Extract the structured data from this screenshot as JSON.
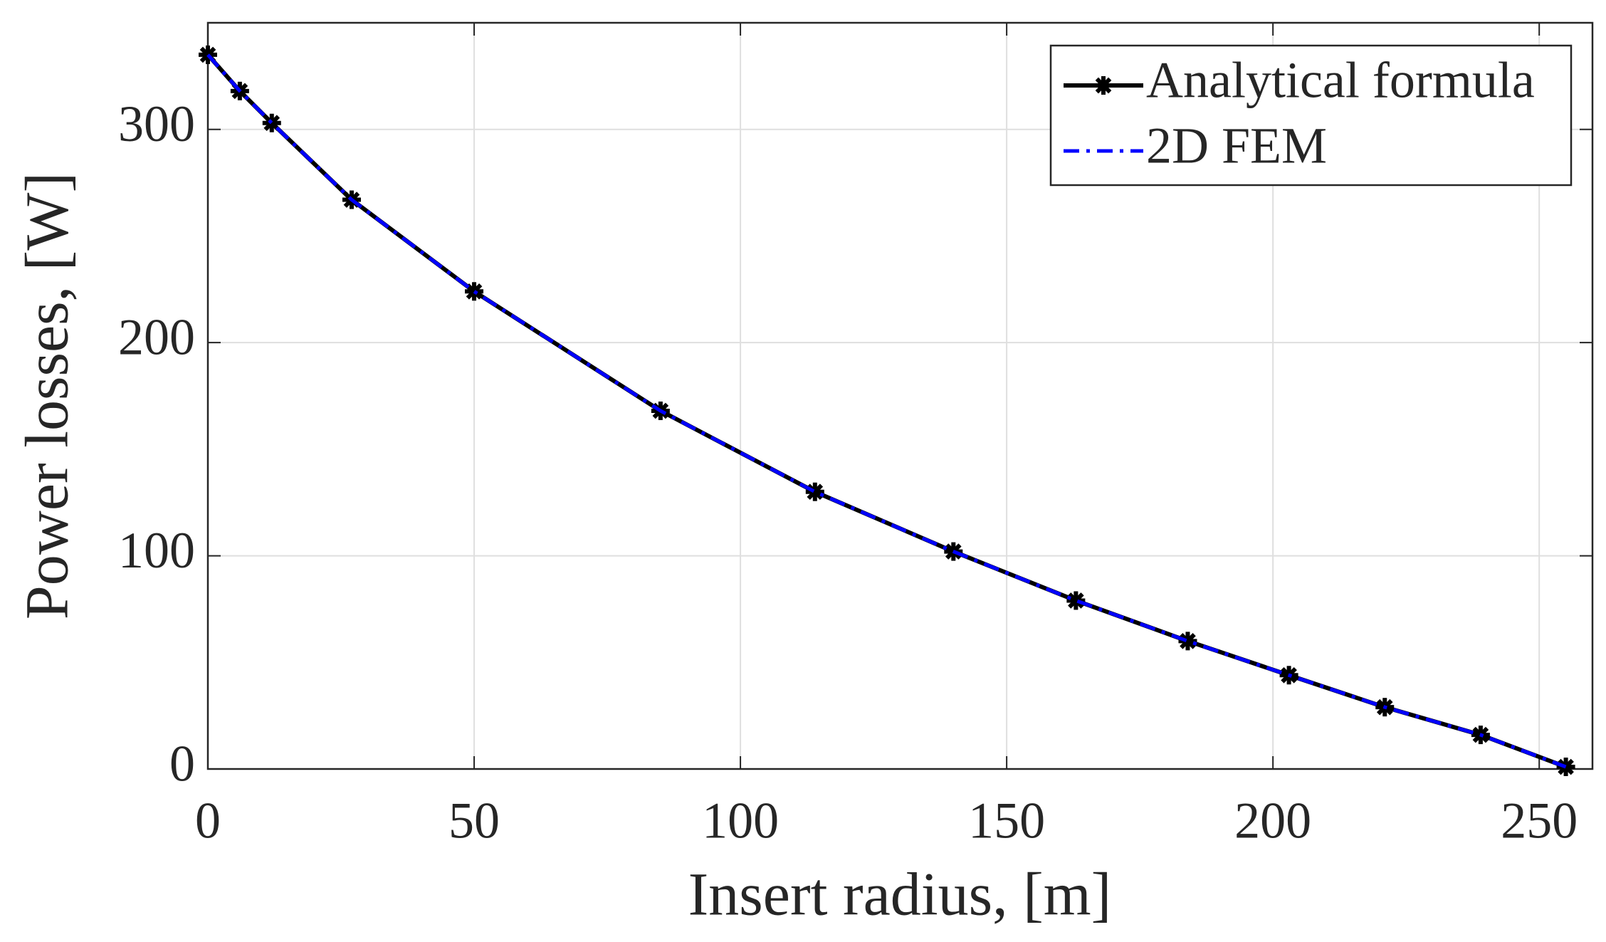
{
  "chart_data": {
    "type": "line",
    "x_label": "Insert radius, [m]",
    "y_label": "Power losses, [W]",
    "x": [
      0,
      6,
      12,
      27,
      50,
      85,
      114,
      140,
      163,
      184,
      203,
      221,
      239,
      255
    ],
    "series": [
      {
        "name": "Analytical formula",
        "color": "#000000",
        "style": "solid-marker",
        "values": [
          335,
          318,
          303,
          267,
          224,
          168,
          130,
          102,
          79,
          60,
          44,
          29,
          16,
          1
        ]
      },
      {
        "name": "2D FEM",
        "color": "#0000ff",
        "style": "dashdot",
        "values": [
          335,
          318,
          303,
          267,
          224,
          168,
          130,
          102,
          79,
          60,
          44,
          29,
          16,
          1
        ]
      }
    ],
    "xlim": [
      0,
      260
    ],
    "xticks": [
      0,
      50,
      100,
      150,
      200,
      250
    ],
    "ylim": [
      0,
      350
    ],
    "yticks": [
      0,
      100,
      200,
      300
    ],
    "grid": true,
    "legend": "top-right"
  }
}
